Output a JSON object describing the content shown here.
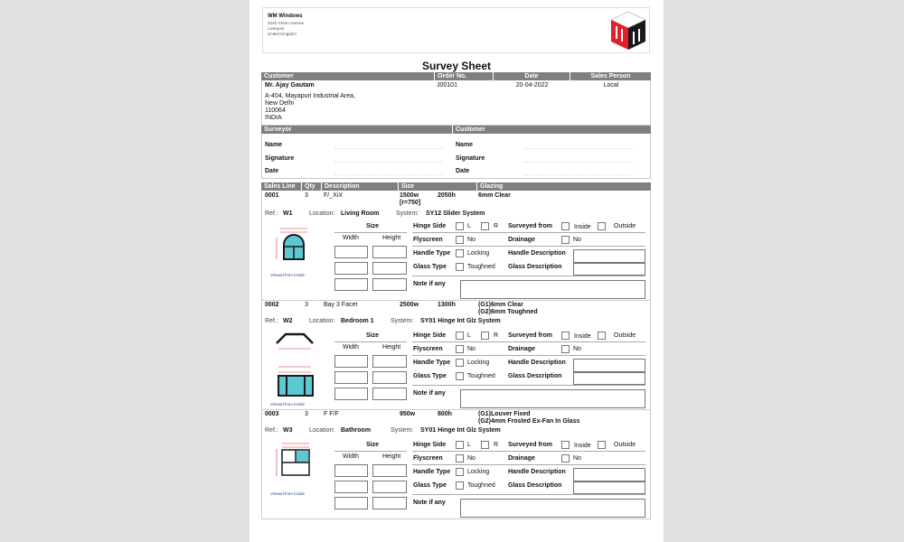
{
  "company": {
    "name": "WM Windows",
    "address": [
      "2245 Green Avenue",
      "Liverpool",
      "United Kingdom"
    ],
    "logo_text": "WM"
  },
  "title": "Survey Sheet",
  "order_header": {
    "customer": "Customer",
    "order_no": "Order No.",
    "date": "Date",
    "sales_person": "Sales Person"
  },
  "order": {
    "customer_name": "Mr. Ajay Gautam",
    "order_no": "J00101",
    "date": "20-04-2022",
    "sales_person": "Local",
    "address": [
      "A-404, Mayapuri Industrial Area,",
      "New Delhi",
      "110064",
      "INDIA"
    ]
  },
  "sign_header": {
    "surveyor": "Surveyor",
    "customer": "Customer"
  },
  "sign_labels": [
    "Name",
    "Signature",
    "Date"
  ],
  "lines_header": {
    "sales_line": "Sales Line",
    "qty": "Qty",
    "description": "Description",
    "size": "Size",
    "glazing": "Glazing"
  },
  "labels": {
    "ref": "Ref.:",
    "location": "Location:",
    "system": "System:",
    "size": "Size",
    "width": "Width",
    "height": "Height",
    "hinge_side": "Hinge Side",
    "l": "L",
    "r": "R",
    "surveyed_from": "Surveyed from",
    "inside": "Inside",
    "outside": "Outside",
    "flyscreen": "Flyscreen",
    "no": "No",
    "drainage": "Drainage",
    "handle_type": "Handle Type",
    "locking": "Locking",
    "handle_description": "Handle Description",
    "glass_type": "Glass Type",
    "toughened": "Toughned",
    "glass_description": "Glass Description",
    "note": "Note if any",
    "viewed": "Viewed from inside"
  },
  "items": [
    {
      "line": "0001",
      "qty": "3",
      "description": "F/_XiX",
      "width": "1500w",
      "height": "2050h",
      "radius": "[r=750]",
      "glazing": [
        "6mm Clear"
      ],
      "ref": "W1",
      "location": "Living Room",
      "system": "SY12 Slider System",
      "drawing": "arch"
    },
    {
      "line": "0002",
      "qty": "3",
      "description": "Bay 3 Facet",
      "width": "2500w",
      "height": "1300h",
      "radius": "",
      "glazing": [
        "(G1)6mm Clear",
        "(G2)6mm Toughned"
      ],
      "ref": "W2",
      "location": "Bedroom 1",
      "system": "SY01 Hinge Int Glz System",
      "drawing": "bay"
    },
    {
      "line": "0003",
      "qty": "3",
      "description": "F F/F",
      "width": "950w",
      "height": "800h",
      "radius": "",
      "glazing": [
        "(G1)Louver Fixed",
        "(G2)4mm Frosted Ex-Fan In Glass"
      ],
      "ref": "W3",
      "location": "Bathroom",
      "system": "SY01 Hinge Int Glz System",
      "drawing": "fixed"
    }
  ],
  "colors": {
    "header_bar": "#7f7f7f",
    "glass": "#5bc8d4",
    "logo_red": "#e3202a",
    "logo_black": "#1a1a1a",
    "dimension": "#d0302a"
  }
}
